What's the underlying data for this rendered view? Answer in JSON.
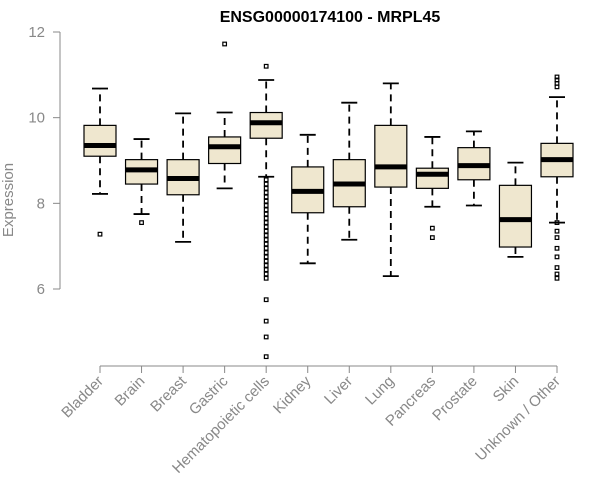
{
  "chart_data": {
    "type": "box",
    "title": "ENSG00000174100 - MRPL45",
    "ylabel": "Expression",
    "ylim": [
      4.1,
      12.3
    ],
    "yticks": [
      6,
      8,
      10,
      12
    ],
    "colors": {
      "box_fill": "#efe7cf",
      "axis": "#888888"
    },
    "boxes": [
      {
        "category": "Bladder",
        "whisker_low": 8.22,
        "q1": 9.1,
        "median": 9.35,
        "q3": 9.82,
        "whisker_high": 10.68,
        "outliers": [
          7.28
        ]
      },
      {
        "category": "Brain",
        "whisker_low": 7.75,
        "q1": 8.45,
        "median": 8.78,
        "q3": 9.02,
        "whisker_high": 9.5,
        "outliers": [
          7.55
        ]
      },
      {
        "category": "Breast",
        "whisker_low": 7.1,
        "q1": 8.2,
        "median": 8.58,
        "q3": 9.02,
        "whisker_high": 10.1,
        "outliers": []
      },
      {
        "category": "Gastric",
        "whisker_low": 8.35,
        "q1": 8.93,
        "median": 9.32,
        "q3": 9.55,
        "whisker_high": 10.12,
        "outliers": [
          11.72
        ]
      },
      {
        "category": "Hematopoietic cells",
        "whisker_low": 8.62,
        "q1": 9.52,
        "median": 9.88,
        "q3": 10.12,
        "whisker_high": 10.88,
        "outliers": [
          11.2,
          8.55,
          8.45,
          8.35,
          8.25,
          8.15,
          8.05,
          7.95,
          7.85,
          7.75,
          7.65,
          7.55,
          7.45,
          7.35,
          7.25,
          7.15,
          7.05,
          6.95,
          6.85,
          6.75,
          6.65,
          6.55,
          6.45,
          6.35,
          6.25,
          5.75,
          5.25,
          4.88,
          4.42
        ]
      },
      {
        "category": "Kidney",
        "whisker_low": 6.6,
        "q1": 7.78,
        "median": 8.28,
        "q3": 8.85,
        "whisker_high": 9.6,
        "outliers": []
      },
      {
        "category": "Liver",
        "whisker_low": 7.15,
        "q1": 7.92,
        "median": 8.45,
        "q3": 9.02,
        "whisker_high": 10.35,
        "outliers": []
      },
      {
        "category": "Lung",
        "whisker_low": 6.3,
        "q1": 8.38,
        "median": 8.85,
        "q3": 9.82,
        "whisker_high": 10.8,
        "outliers": []
      },
      {
        "category": "Pancreas",
        "whisker_low": 7.92,
        "q1": 8.35,
        "median": 8.68,
        "q3": 8.82,
        "whisker_high": 9.55,
        "outliers": [
          7.42,
          7.2
        ]
      },
      {
        "category": "Prostate",
        "whisker_low": 7.95,
        "q1": 8.55,
        "median": 8.88,
        "q3": 9.3,
        "whisker_high": 9.68,
        "outliers": []
      },
      {
        "category": "Skin",
        "whisker_low": 6.75,
        "q1": 6.98,
        "median": 7.62,
        "q3": 8.42,
        "whisker_high": 8.95,
        "outliers": []
      },
      {
        "category": "Unknown / Other",
        "whisker_low": 7.55,
        "q1": 8.62,
        "median": 9.02,
        "q3": 9.4,
        "whisker_high": 10.48,
        "outliers": [
          10.95,
          10.88,
          10.8,
          10.72,
          7.55,
          7.35,
          7.2,
          6.95,
          6.75,
          6.5,
          6.35,
          6.25
        ]
      }
    ]
  }
}
